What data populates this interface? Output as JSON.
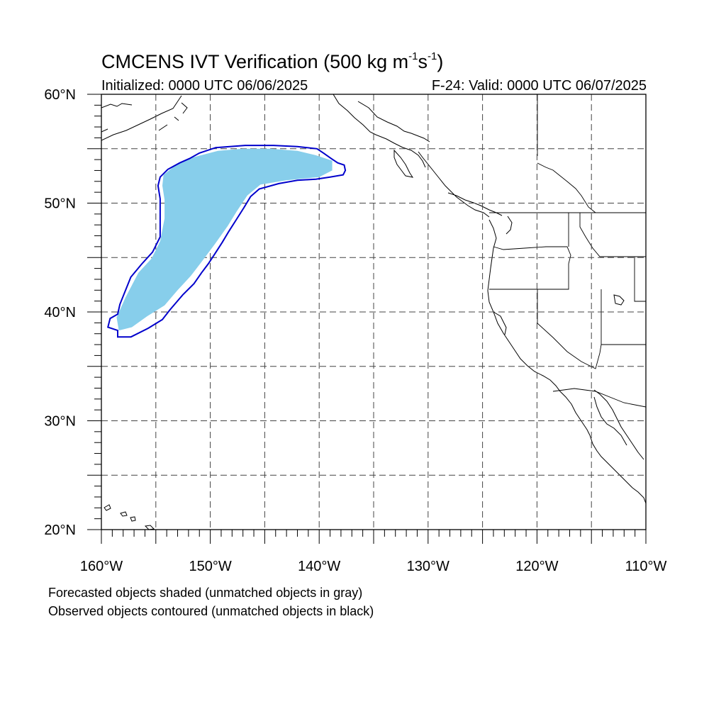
{
  "title": {
    "prefix": "CMCENS IVT Verification (500 kg m",
    "sup1": "-1",
    "mid": "s",
    "sup2": "-1",
    "suffix": ")"
  },
  "initialized": "Initialized: 0000 UTC 06/06/2025",
  "valid": "F-24: Valid: 0000 UTC 06/07/2025",
  "notes": [
    "Forecasted objects shaded (unmatched objects in gray)",
    "Observed objects contoured (unmatched objects in black)"
  ],
  "map": {
    "projection": "cylindrical equidistant",
    "lon_range": [
      -160,
      -110
    ],
    "lat_range": [
      20,
      60
    ],
    "grid_step_deg": 5,
    "lon_labels": [
      "160°W",
      "150°W",
      "140°W",
      "130°W",
      "120°W",
      "110°W"
    ],
    "lat_labels": [
      "20°N",
      "30°N",
      "40°N",
      "50°N",
      "60°N"
    ],
    "colors": {
      "forecast_fill": "#87ceeb",
      "observed_contour": "#0000cc",
      "coast": "#000000",
      "grid": "#444444"
    },
    "forecast_object": [
      [
        -158.4,
        38.3
      ],
      [
        -157.2,
        38.6
      ],
      [
        -155.8,
        39.6
      ],
      [
        -154.2,
        40.6
      ],
      [
        -153,
        42
      ],
      [
        -151.8,
        43.3
      ],
      [
        -150.8,
        44.6
      ],
      [
        -149.6,
        46.2
      ],
      [
        -148.4,
        47.9
      ],
      [
        -147.6,
        49.2
      ],
      [
        -146.6,
        50.7
      ],
      [
        -145.4,
        51.7
      ],
      [
        -143,
        52.1
      ],
      [
        -140,
        52.4
      ],
      [
        -138.8,
        53
      ],
      [
        -138.8,
        53.9
      ],
      [
        -140.3,
        54.4
      ],
      [
        -142,
        54.8
      ],
      [
        -144.5,
        55
      ],
      [
        -147,
        55
      ],
      [
        -149.3,
        54.8
      ],
      [
        -151.6,
        54.2
      ],
      [
        -153.3,
        53.4
      ],
      [
        -154.3,
        52.6
      ],
      [
        -154.4,
        51.6
      ],
      [
        -154.2,
        50.3
      ],
      [
        -154.2,
        48.6
      ],
      [
        -154.6,
        46.5
      ],
      [
        -155.4,
        44.9
      ],
      [
        -156.6,
        43.6
      ],
      [
        -157.8,
        41.3
      ],
      [
        -158.6,
        39.5
      ]
    ],
    "observed_contour": [
      [
        -157.3,
        37.7
      ],
      [
        -155.7,
        38.5
      ],
      [
        -154.4,
        39.3
      ],
      [
        -153.7,
        40.2
      ],
      [
        -152.5,
        41.6
      ],
      [
        -151.5,
        42.6
      ],
      [
        -150.8,
        43.6
      ],
      [
        -150.2,
        44.4
      ],
      [
        -149.6,
        45.3
      ],
      [
        -148.9,
        46.4
      ],
      [
        -148.3,
        47.4
      ],
      [
        -147.6,
        48.5
      ],
      [
        -146.9,
        49.6
      ],
      [
        -146.3,
        50.6
      ],
      [
        -145.5,
        51.3
      ],
      [
        -143.7,
        51.8
      ],
      [
        -142,
        52.1
      ],
      [
        -140.3,
        52.2
      ],
      [
        -139,
        52.4
      ],
      [
        -137.8,
        52.6
      ],
      [
        -137.6,
        53
      ],
      [
        -137.7,
        53.5
      ],
      [
        -138.3,
        53.7
      ],
      [
        -138.9,
        54.1
      ],
      [
        -139.6,
        54.6
      ],
      [
        -140.2,
        55
      ],
      [
        -142,
        55.2
      ],
      [
        -144.2,
        55.3
      ],
      [
        -146.8,
        55.3
      ],
      [
        -149.5,
        55.1
      ],
      [
        -151,
        54.6
      ],
      [
        -151.9,
        54.1
      ],
      [
        -152.8,
        53.7
      ],
      [
        -153.9,
        53.1
      ],
      [
        -154.6,
        52.4
      ],
      [
        -154.8,
        51.6
      ],
      [
        -154.6,
        50.4
      ],
      [
        -154.6,
        48.5
      ],
      [
        -154.6,
        46.9
      ],
      [
        -155.3,
        45.5
      ],
      [
        -156.3,
        44.4
      ],
      [
        -157.3,
        43.2
      ],
      [
        -158.3,
        40.7
      ],
      [
        -158.5,
        39.8
      ],
      [
        -159.2,
        39.4
      ],
      [
        -159.4,
        38.6
      ],
      [
        -158.5,
        38.3
      ],
      [
        -158.5,
        37.7
      ]
    ]
  }
}
